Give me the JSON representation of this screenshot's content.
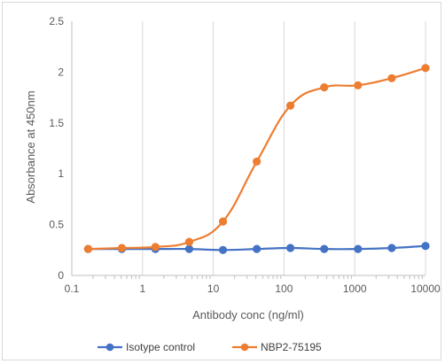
{
  "chart_data": {
    "type": "line",
    "title": "",
    "xlabel": "Antibody conc (ng/ml)",
    "ylabel": "Absorbance at 450nm",
    "xscale": "log",
    "xlim": [
      0.1,
      10000
    ],
    "ylim": [
      0,
      2.5
    ],
    "xticks": [
      "0.1",
      "1",
      "10",
      "100",
      "1000",
      "10000"
    ],
    "yticks": [
      "0",
      "0.5",
      "1",
      "1.5",
      "2",
      "2.5"
    ],
    "grid": "vertical",
    "legend_position": "bottom",
    "series": [
      {
        "name": "Isotype control",
        "color": "#4472C4",
        "x": [
          0.17,
          0.51,
          1.52,
          4.57,
          13.7,
          41.2,
          123,
          370,
          1111,
          3333,
          10000
        ],
        "y": [
          0.26,
          0.26,
          0.26,
          0.26,
          0.25,
          0.26,
          0.27,
          0.26,
          0.26,
          0.27,
          0.29
        ]
      },
      {
        "name": "NBP2-75195",
        "color": "#ED7D31",
        "x": [
          0.17,
          0.51,
          1.52,
          4.57,
          13.7,
          41.2,
          123,
          370,
          1111,
          3333,
          10000
        ],
        "y": [
          0.26,
          0.27,
          0.28,
          0.33,
          0.53,
          1.12,
          1.67,
          1.85,
          1.87,
          1.94,
          2.04
        ]
      }
    ]
  }
}
